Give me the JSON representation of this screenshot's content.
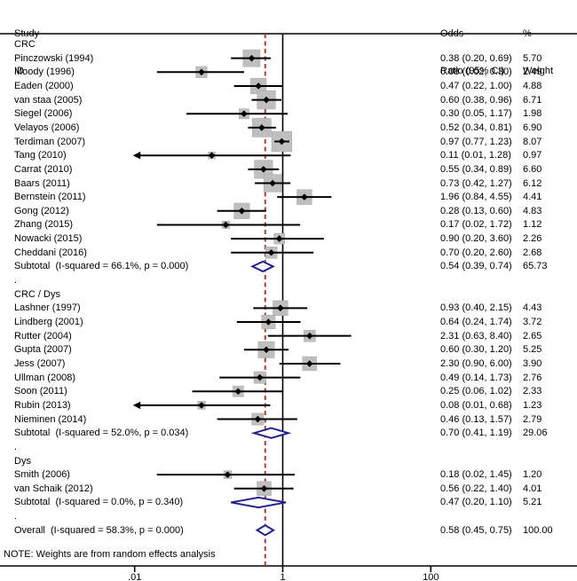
{
  "header": {
    "study_line1": "Study",
    "study_line2": "ID",
    "or_line1": "Odds",
    "or_line2": "Ratio (95% CI)",
    "weight_line1": "%",
    "weight_line2": "Weight"
  },
  "note": "NOTE: Weights are from random effects analysis",
  "colors": {
    "box_gray": "#bfbfbf",
    "box_border": "#a8a8a8",
    "line_black": "#000000",
    "diamond_navy": "#22228e",
    "overall_dash_red": "#a5403c",
    "background": "#ffffff"
  },
  "chart_data": {
    "type": "forest",
    "x_axis": {
      "scale": "log",
      "tick_labels": [
        ".01",
        "1",
        "100"
      ],
      "tick_values": [
        0.01,
        1,
        100
      ],
      "xlim": [
        0.01,
        100
      ],
      "null_line": 1.0,
      "overall_dashed_line": 0.58
    },
    "groups": [
      {
        "label": "CRC",
        "studies": [
          {
            "label": "Pinczowski (1994)",
            "or": 0.38,
            "lo": 0.2,
            "hi": 0.69,
            "or_text": "0.38 (0.20, 0.69)",
            "weight": 5.7,
            "weight_text": "5.70"
          },
          {
            "label": "Moody (1996)",
            "or": 0.08,
            "lo": 0.02,
            "hi": 0.3,
            "or_text": "0.08 (0.02, 0.30)",
            "weight": 2.49,
            "weight_text": "2.49"
          },
          {
            "label": "Eaden (2000)",
            "or": 0.47,
            "lo": 0.22,
            "hi": 1.0,
            "or_text": "0.47 (0.22, 1.00)",
            "weight": 4.88,
            "weight_text": "4.88"
          },
          {
            "label": "van staa (2005)",
            "or": 0.6,
            "lo": 0.38,
            "hi": 0.96,
            "or_text": "0.60 (0.38, 0.96)",
            "weight": 6.71,
            "weight_text": "6.71"
          },
          {
            "label": "Siegel (2006)",
            "or": 0.3,
            "lo": 0.05,
            "hi": 1.17,
            "or_text": "0.30 (0.05, 1.17)",
            "weight": 1.98,
            "weight_text": "1.98"
          },
          {
            "label": "Velayos (2006)",
            "or": 0.52,
            "lo": 0.34,
            "hi": 0.81,
            "or_text": "0.52 (0.34, 0.81)",
            "weight": 6.9,
            "weight_text": "6.90"
          },
          {
            "label": "Terdiman (2007)",
            "or": 0.97,
            "lo": 0.77,
            "hi": 1.23,
            "or_text": "0.97 (0.77, 1.23)",
            "weight": 8.07,
            "weight_text": "8.07"
          },
          {
            "label": "Tang (2010)",
            "or": 0.11,
            "lo": 0.01,
            "hi": 1.28,
            "or_text": "0.11 (0.01, 1.28)",
            "weight": 0.97,
            "weight_text": "0.97",
            "arrow_lo": true
          },
          {
            "label": "Carrat (2010)",
            "or": 0.55,
            "lo": 0.34,
            "hi": 0.89,
            "or_text": "0.55 (0.34, 0.89)",
            "weight": 6.6,
            "weight_text": "6.60"
          },
          {
            "label": "Baars (2011)",
            "or": 0.73,
            "lo": 0.42,
            "hi": 1.27,
            "or_text": "0.73 (0.42, 1.27)",
            "weight": 6.12,
            "weight_text": "6.12"
          },
          {
            "label": "Bernstein (2011)",
            "or": 1.96,
            "lo": 0.84,
            "hi": 4.55,
            "or_text": "1.96 (0.84, 4.55)",
            "weight": 4.41,
            "weight_text": "4.41"
          },
          {
            "label": "Gong (2012)",
            "or": 0.28,
            "lo": 0.13,
            "hi": 0.6,
            "or_text": "0.28 (0.13, 0.60)",
            "weight": 4.83,
            "weight_text": "4.83"
          },
          {
            "label": "Zhang (2015)",
            "or": 0.17,
            "lo": 0.02,
            "hi": 1.72,
            "or_text": "0.17 (0.02, 1.72)",
            "weight": 1.12,
            "weight_text": "1.12"
          },
          {
            "label": "Nowacki (2015)",
            "or": 0.9,
            "lo": 0.2,
            "hi": 3.6,
            "or_text": "0.90 (0.20, 3.60)",
            "weight": 2.26,
            "weight_text": "2.26"
          },
          {
            "label": "Cheddani (2016)",
            "or": 0.7,
            "lo": 0.2,
            "hi": 2.6,
            "or_text": "0.70 (0.20, 2.60)",
            "weight": 2.68,
            "weight_text": "2.68"
          }
        ],
        "subtotal": {
          "label": "Subtotal  (I-squared = 66.1%, p = 0.000)",
          "or": 0.54,
          "lo": 0.39,
          "hi": 0.74,
          "or_text": "0.54 (0.39, 0.74)",
          "weight_text": "65.73"
        }
      },
      {
        "label": "CRC / Dys",
        "studies": [
          {
            "label": "Lashner (1997)",
            "or": 0.93,
            "lo": 0.4,
            "hi": 2.15,
            "or_text": "0.93 (0.40, 2.15)",
            "weight": 4.43,
            "weight_text": "4.43"
          },
          {
            "label": "Lindberg (2001)",
            "or": 0.64,
            "lo": 0.24,
            "hi": 1.74,
            "or_text": "0.64 (0.24, 1.74)",
            "weight": 3.72,
            "weight_text": "3.72"
          },
          {
            "label": "Rutter (2004)",
            "or": 2.31,
            "lo": 0.63,
            "hi": 8.4,
            "or_text": "2.31 (0.63, 8.40)",
            "weight": 2.65,
            "weight_text": "2.65"
          },
          {
            "label": "Gupta (2007)",
            "or": 0.6,
            "lo": 0.3,
            "hi": 1.2,
            "or_text": "0.60 (0.30, 1.20)",
            "weight": 5.25,
            "weight_text": "5.25"
          },
          {
            "label": "Jess (2007)",
            "or": 2.3,
            "lo": 0.9,
            "hi": 6.0,
            "or_text": "2.30 (0.90, 6.00)",
            "weight": 3.9,
            "weight_text": "3.90"
          },
          {
            "label": "Ullman (2008)",
            "or": 0.49,
            "lo": 0.14,
            "hi": 1.73,
            "or_text": "0.49 (0.14, 1.73)",
            "weight": 2.76,
            "weight_text": "2.76"
          },
          {
            "label": "Soon (2011)",
            "or": 0.25,
            "lo": 0.06,
            "hi": 1.02,
            "or_text": "0.25 (0.06, 1.02)",
            "weight": 2.33,
            "weight_text": "2.33"
          },
          {
            "label": "Rubin (2013)",
            "or": 0.08,
            "lo": 0.01,
            "hi": 0.68,
            "or_text": "0.08 (0.01, 0.68)",
            "weight": 1.23,
            "weight_text": "1.23",
            "arrow_lo": true
          },
          {
            "label": "Nieminen (2014)",
            "or": 0.46,
            "lo": 0.13,
            "hi": 1.57,
            "or_text": "0.46 (0.13, 1.57)",
            "weight": 2.79,
            "weight_text": "2.79"
          }
        ],
        "subtotal": {
          "label": "Subtotal  (I-squared = 52.0%, p = 0.034)",
          "or": 0.7,
          "lo": 0.41,
          "hi": 1.19,
          "or_text": "0.70 (0.41, 1.19)",
          "weight_text": "29.06"
        }
      },
      {
        "label": "Dys",
        "studies": [
          {
            "label": "Smith (2006)",
            "or": 0.18,
            "lo": 0.02,
            "hi": 1.45,
            "or_text": "0.18 (0.02, 1.45)",
            "weight": 1.2,
            "weight_text": "1.20"
          },
          {
            "label": "van Schaik (2012)",
            "or": 0.56,
            "lo": 0.22,
            "hi": 1.4,
            "or_text": "0.56 (0.22, 1.40)",
            "weight": 4.01,
            "weight_text": "4.01"
          }
        ],
        "subtotal": {
          "label": "Subtotal  (I-squared = 0.0%, p = 0.340)",
          "or": 0.47,
          "lo": 0.2,
          "hi": 1.1,
          "or_text": "0.47 (0.20, 1.10)",
          "weight_text": "5.21"
        }
      }
    ],
    "overall": {
      "label": "Overall  (I-squared = 58.3%, p = 0.000)",
      "or": 0.58,
      "lo": 0.45,
      "hi": 0.75,
      "or_text": "0.58 (0.45, 0.75)",
      "weight_text": "100.00"
    }
  }
}
